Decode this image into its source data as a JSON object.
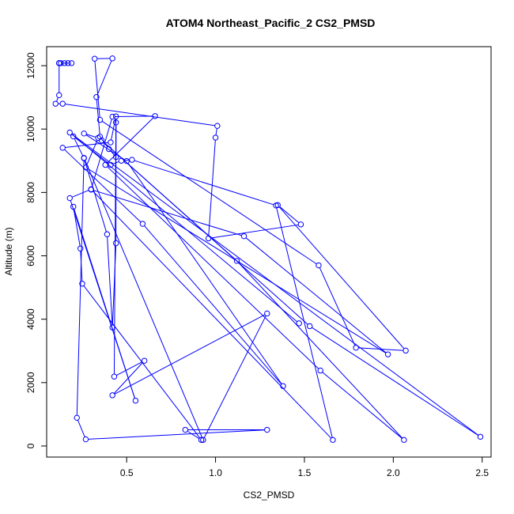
{
  "chart_data": {
    "type": "line",
    "title": "ATOM4 Northeast_Pacific_2 CS2_PMSD",
    "xlabel": "CS2_PMSD",
    "ylabel": "Altitude (m)",
    "xlim": [
      0.05,
      2.55
    ],
    "ylim": [
      -350,
      12600
    ],
    "xticks": [
      0.5,
      1.0,
      1.5,
      2.0,
      2.5
    ],
    "xtick_labels": [
      "0.5",
      "1.0",
      "1.5",
      "2.0",
      "2.5"
    ],
    "yticks": [
      0,
      2000,
      4000,
      6000,
      8000,
      10000,
      12000
    ],
    "ytick_labels": [
      "0",
      "2000",
      "4000",
      "6000",
      "8000",
      "10000",
      "12000"
    ],
    "grid": false,
    "colors": {
      "series": "#0000ff",
      "axes": "#000000",
      "background": "#ffffff"
    },
    "series": [
      {
        "x": [
          0.12,
          0.13,
          0.15,
          0.17,
          0.19,
          0.12,
          0.12,
          0.1,
          0.14,
          1.01,
          1.0,
          0.96,
          1.48,
          1.35,
          2.07,
          1.79,
          1.58,
          0.35,
          0.32,
          0.42,
          0.33,
          0.35,
          0.4,
          0.44,
          0.44,
          0.44,
          0.42,
          0.39,
          0.26,
          0.2,
          0.41,
          0.47,
          0.53,
          1.34,
          1.66,
          0.3,
          0.18,
          0.55,
          0.2,
          0.24,
          0.25,
          0.92,
          0.83,
          1.29,
          0.27,
          0.22,
          0.26,
          0.93,
          1.29,
          0.42,
          0.6,
          0.43,
          0.44,
          0.41,
          0.14,
          0.59,
          1.38,
          0.5,
          0.26,
          0.34,
          0.27,
          1.97,
          1.16,
          0.3,
          0.42,
          0.66,
          0.38,
          1.59,
          2.06,
          1.12,
          0.36,
          1.53,
          2.49,
          0.18,
          1.47
        ],
        "y": [
          12080,
          12080,
          12080,
          12080,
          12080,
          12080,
          11070,
          10800,
          10800,
          10100,
          9730,
          6550,
          6990,
          7600,
          3010,
          3100,
          5700,
          10290,
          12220,
          12230,
          11010,
          9760,
          9370,
          9120,
          10210,
          6400,
          3740,
          6680,
          9080,
          9770,
          8870,
          9000,
          9030,
          7590,
          190,
          8100,
          7820,
          1430,
          7550,
          6230,
          5120,
          190,
          510,
          510,
          210,
          890,
          9090,
          190,
          4180,
          1600,
          2690,
          2190,
          10400,
          9580,
          9410,
          7010,
          1890,
          8990,
          9860,
          9720,
          8790,
          2890,
          6620,
          8090,
          10390,
          10410,
          8870,
          2380,
          190,
          5840,
          9640,
          3780,
          290,
          9890,
          3870
        ]
      }
    ]
  }
}
